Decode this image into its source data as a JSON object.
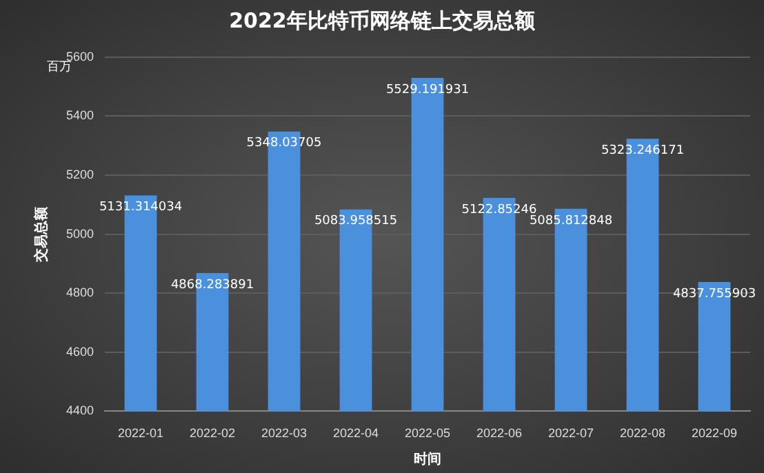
{
  "chart_data": {
    "type": "bar",
    "title": "2022年比特币网络链上交易总额",
    "xlabel": "时间",
    "ylabel": "交易总额",
    "annotations": [
      "百万"
    ],
    "categories": [
      "2022-01",
      "2022-02",
      "2022-03",
      "2022-04",
      "2022-05",
      "2022-06",
      "2022-07",
      "2022-08",
      "2022-09"
    ],
    "values": [
      5131.314034,
      4868.283891,
      5348.03705,
      5083.958515,
      5529.191931,
      5122.85246,
      5085.812848,
      5323.246171,
      4837.755903
    ],
    "color": "#4a90dc",
    "ylim": [
      4400,
      5600
    ],
    "yticks": [
      4400,
      4600,
      4800,
      5000,
      5200,
      5400,
      5600
    ],
    "grid": "y",
    "legend": false,
    "data_labels": true
  }
}
